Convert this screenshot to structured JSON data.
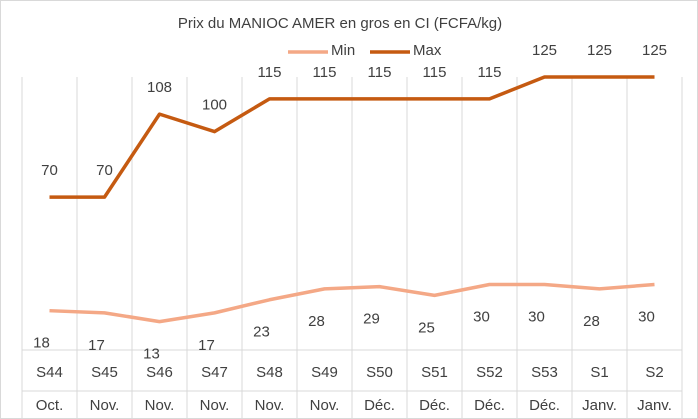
{
  "chart_data": {
    "type": "line",
    "title": "Prix du MANIOC AMER en gros en CI (FCFA/kg)",
    "categories": [
      "S44",
      "S45",
      "S46",
      "S47",
      "S48",
      "S49",
      "S50",
      "S51",
      "S52",
      "S53",
      "S1",
      "S2"
    ],
    "months": [
      "Oct.",
      "Nov.",
      "Nov.",
      "Nov.",
      "Nov.",
      "Nov.",
      "Déc.",
      "Déc.",
      "Déc.",
      "Déc.",
      "Janv.",
      "Janv."
    ],
    "series": [
      {
        "name": "Min",
        "color": "#f4a886",
        "values": [
          18,
          17,
          13,
          17,
          23,
          28,
          29,
          25,
          30,
          30,
          28,
          30
        ]
      },
      {
        "name": "Max",
        "color": "#c55a11",
        "values": [
          70,
          70,
          108,
          100,
          115,
          115,
          115,
          115,
          115,
          125,
          125,
          125
        ]
      }
    ],
    "ylim": [
      0,
      125
    ],
    "legend": "top"
  }
}
